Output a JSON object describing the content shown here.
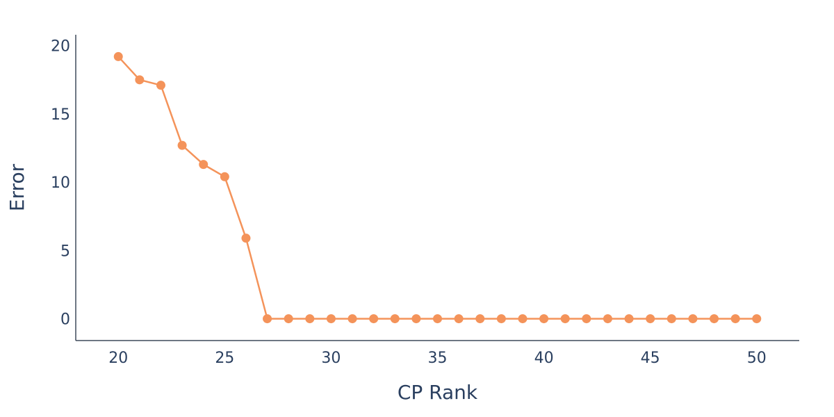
{
  "chart_data": {
    "type": "line",
    "title": "",
    "xlabel": "CP Rank",
    "ylabel": "Error",
    "xlim": [
      18.0,
      52.0
    ],
    "ylim": [
      -1.6,
      20.8
    ],
    "xticks": [
      20,
      25,
      30,
      35,
      40,
      45,
      50
    ],
    "yticks": [
      0,
      5,
      10,
      15,
      20
    ],
    "grid": false,
    "legend": "none",
    "series": [
      {
        "color": "#f4935a",
        "marker": "circle",
        "x": [
          20,
          21,
          22,
          23,
          24,
          25,
          26,
          27,
          28,
          29,
          30,
          31,
          32,
          33,
          34,
          35,
          36,
          37,
          38,
          39,
          40,
          41,
          42,
          43,
          44,
          45,
          46,
          47,
          48,
          49,
          50
        ],
        "y": [
          19.2,
          17.5,
          17.1,
          12.7,
          11.3,
          10.4,
          5.9,
          0.0,
          0.0,
          0.0,
          0.0,
          0.0,
          0.0,
          0.0,
          0.0,
          0.0,
          0.0,
          0.0,
          0.0,
          0.0,
          0.0,
          0.0,
          0.0,
          0.0,
          0.0,
          0.0,
          0.0,
          0.0,
          0.0,
          0.0,
          0.0
        ]
      }
    ]
  }
}
